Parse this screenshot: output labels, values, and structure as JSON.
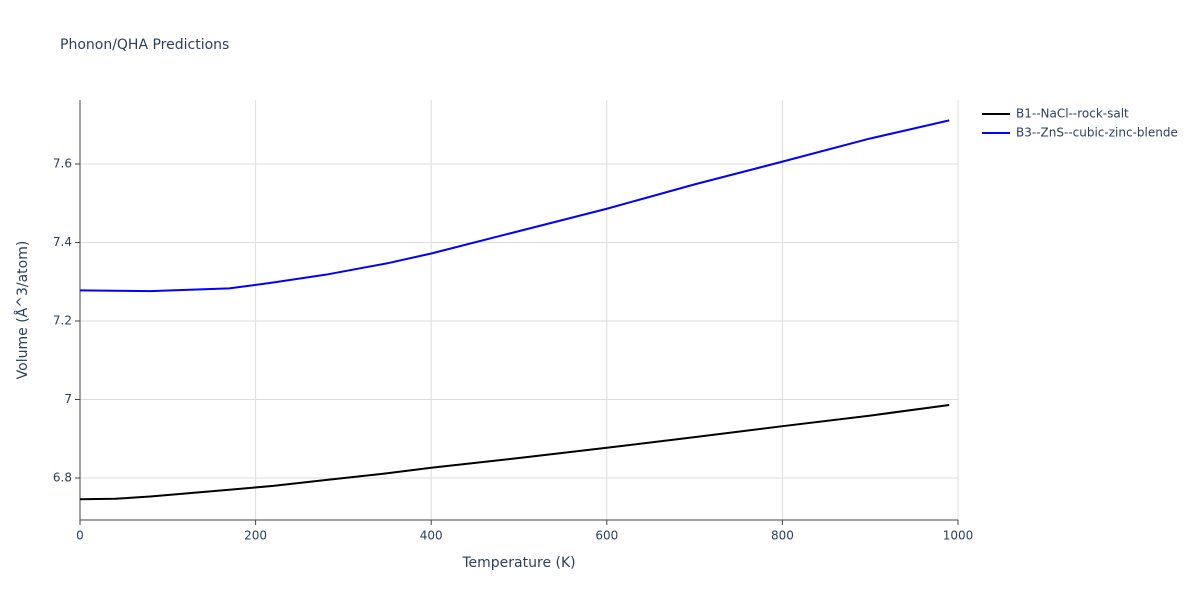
{
  "chart_data": {
    "type": "line",
    "title": "Phonon/QHA Predictions",
    "x_label": "Temperature (K)",
    "y_label": "Volume (Å^3/atom)",
    "x": [
      0,
      40,
      80,
      170,
      220,
      280,
      350,
      400,
      500,
      600,
      700,
      800,
      900,
      990
    ],
    "series": [
      {
        "name": "B1--NaCl--rock-salt",
        "color": "#000000",
        "values": [
          6.746,
          6.747,
          6.753,
          6.77,
          6.78,
          6.795,
          6.812,
          6.826,
          6.851,
          6.877,
          6.904,
          6.932,
          6.959,
          6.986
        ]
      },
      {
        "name": "B3--ZnS--cubic-zinc-blende",
        "color": "#0000ff",
        "values": [
          7.278,
          7.277,
          7.276,
          7.283,
          7.298,
          7.318,
          7.347,
          7.372,
          7.429,
          7.486,
          7.548,
          7.606,
          7.665,
          7.711
        ]
      }
    ],
    "xlim": [
      0,
      1000
    ],
    "xticks": [
      0,
      200,
      400,
      600,
      800,
      1000
    ],
    "ylim": [
      6.693,
      7.763
    ],
    "yticks": [
      6.8,
      7,
      7.2,
      7.4,
      7.6
    ],
    "grid": true,
    "legend": "top-right"
  }
}
